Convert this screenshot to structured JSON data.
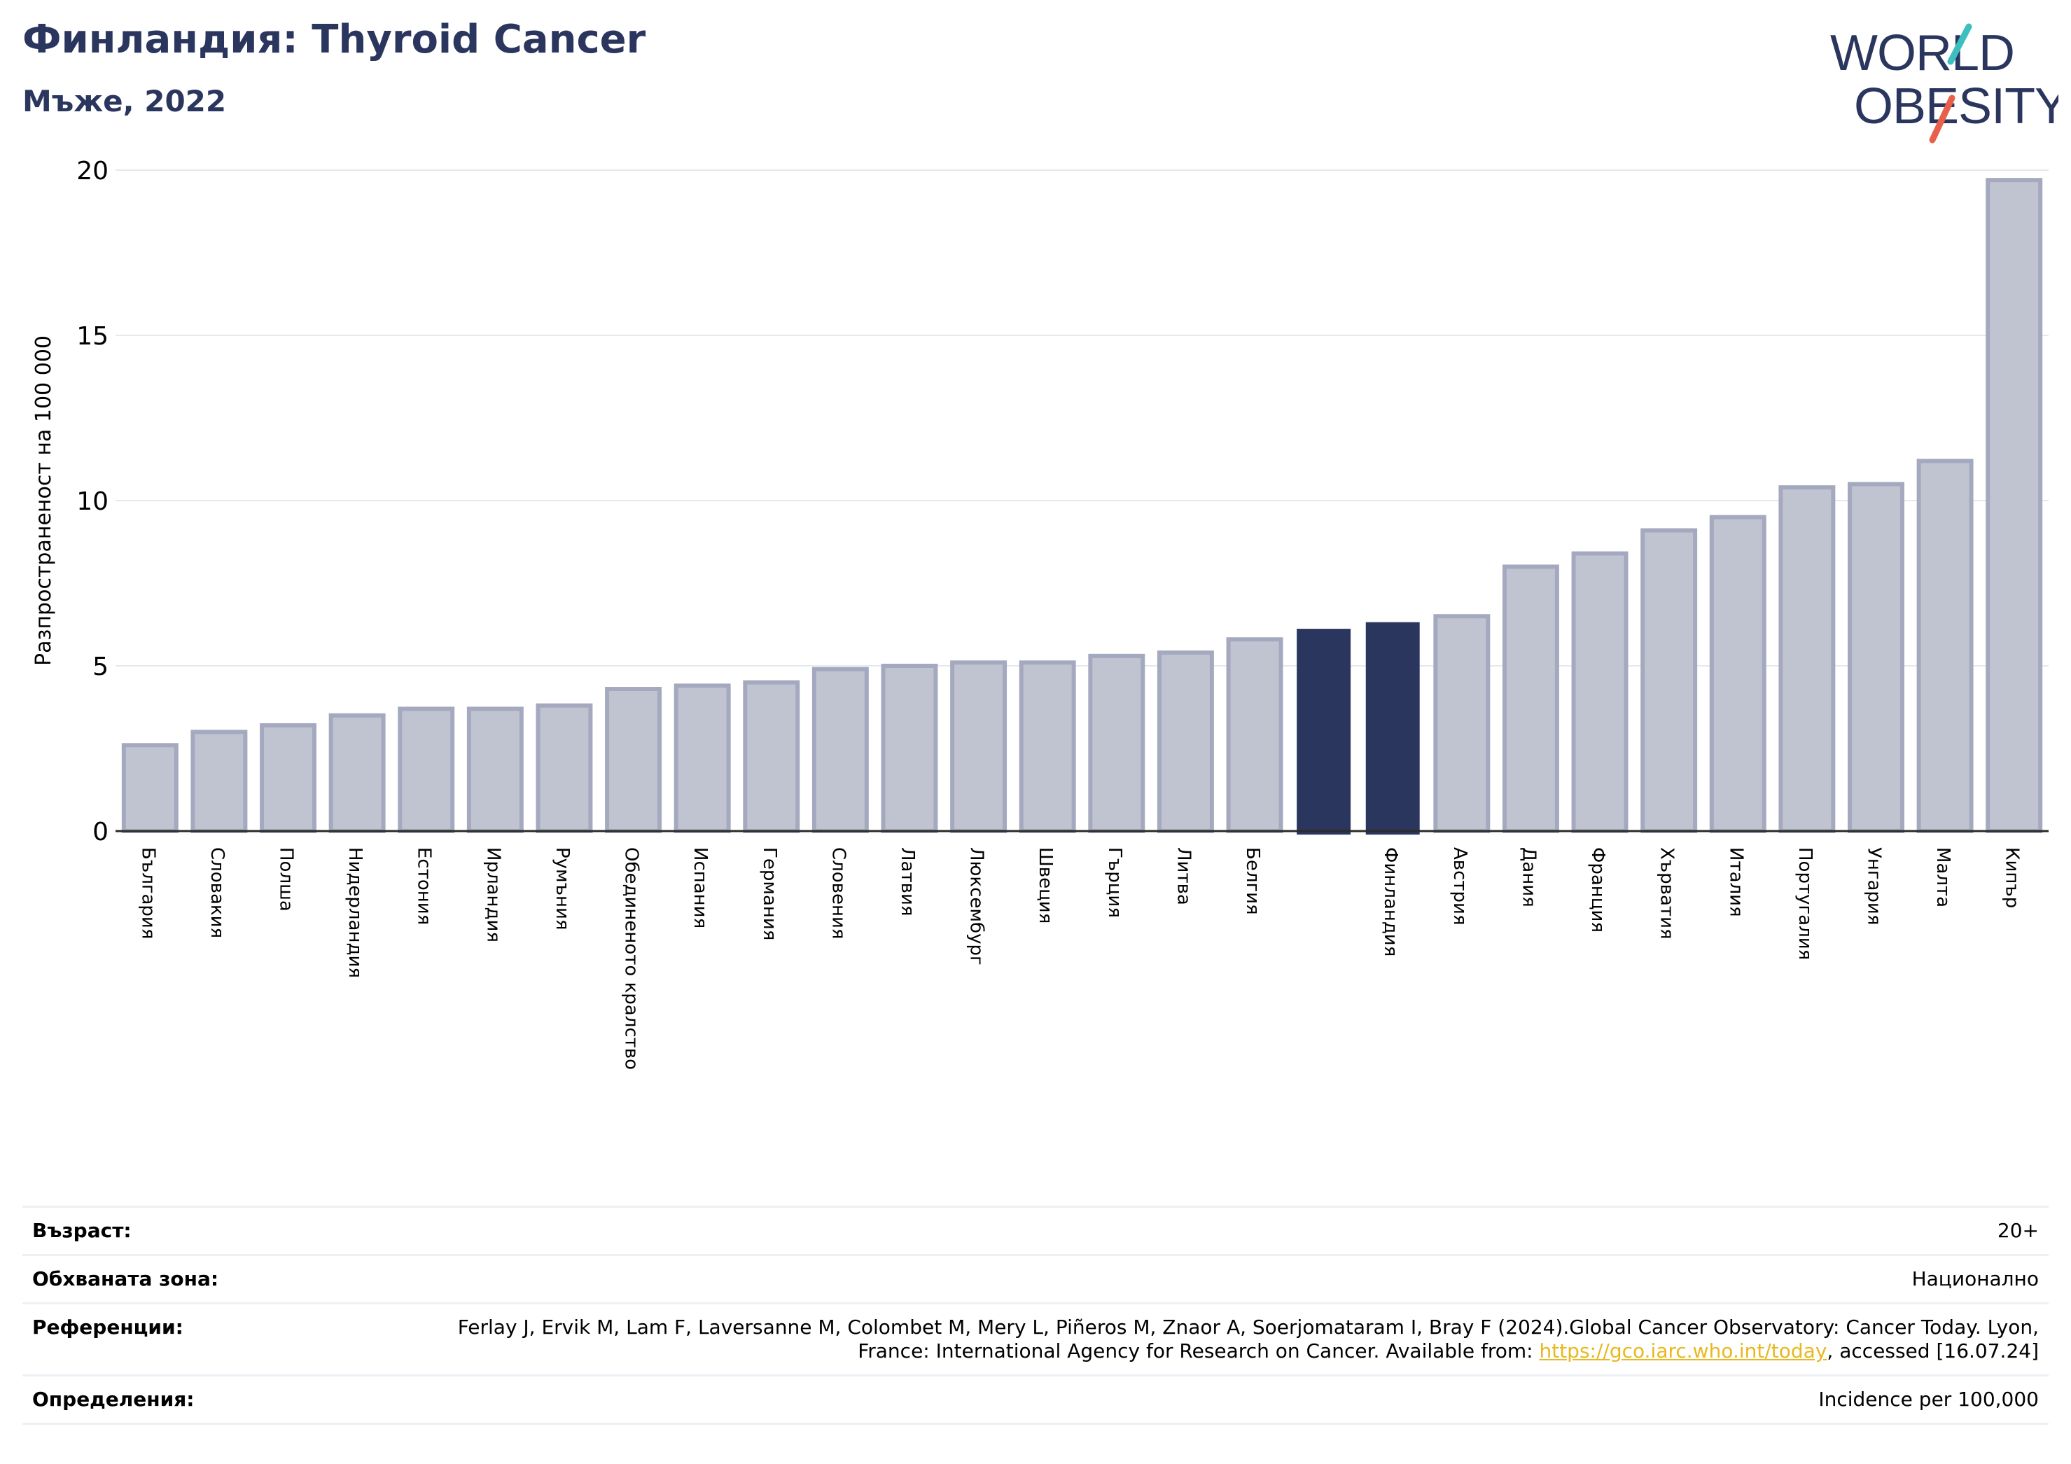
{
  "header": {
    "title": "Финландия: Thyroid Cancer",
    "subtitle": "Мъже, 2022"
  },
  "logo": {
    "line1": "WORLD",
    "line2": "OBESITY",
    "text_color": "#2b365f",
    "slash_colors": [
      "#3bbfbf",
      "#e8604c"
    ]
  },
  "colors": {
    "highlight_bar": "#2b365f",
    "other_bar": "#c0c3d0",
    "other_bar_border": "#a5a9bf",
    "link": "#e8b81e"
  },
  "chart_data": {
    "type": "bar",
    "title": "Финландия: Thyroid Cancer",
    "subtitle": "Мъже, 2022",
    "ylabel": "Разпространеност  на 100 000",
    "xlabel": "",
    "ylim": [
      0,
      20
    ],
    "yticks": [
      0,
      5,
      10,
      15,
      20
    ],
    "grid": true,
    "highlight": "Финландия",
    "categories": [
      "България",
      "Словакия",
      "Полша",
      "Нидерландия",
      "Естония",
      "Ирландия",
      "Румъния",
      "Обединеното кралство",
      "Испания",
      "Германия",
      "Словения",
      "Латвия",
      "Люксембург",
      "Швеция",
      "Гърция",
      "Литва",
      "Белгия",
      "",
      "Финландия",
      "Австрия",
      "Дания",
      "Франция",
      "Хърватия",
      "Италия",
      "Португалия",
      "Унгария",
      "Малта",
      "Кипър"
    ],
    "values": [
      2.6,
      3.0,
      3.2,
      3.5,
      3.7,
      3.7,
      3.8,
      4.3,
      4.4,
      4.5,
      4.9,
      5.0,
      5.1,
      5.1,
      5.3,
      5.4,
      5.8,
      6.1,
      6.3,
      6.5,
      8.0,
      8.4,
      9.1,
      9.5,
      10.4,
      10.5,
      11.2,
      19.7
    ],
    "highlighted_indices": [
      17,
      18
    ]
  },
  "info": {
    "rows": [
      {
        "label": "Възраст:",
        "value": "20+"
      },
      {
        "label": "Обхваната зона:",
        "value": "Национално"
      },
      {
        "label": "Референции:",
        "value_before": "Ferlay J, Ervik M, Lam F, Laversanne M, Colombet M, Mery L, Piñeros M, Znaor A, Soerjomataram I, Bray F (2024).Global Cancer Observatory: Cancer Today. Lyon, France: International Agency for Research on Cancer. Available from: ",
        "link": "https://gco.iarc.who.int/today",
        "value_after": ", accessed [16.07.24]"
      },
      {
        "label": "Определения:",
        "value": "Incidence per 100,000"
      }
    ]
  }
}
